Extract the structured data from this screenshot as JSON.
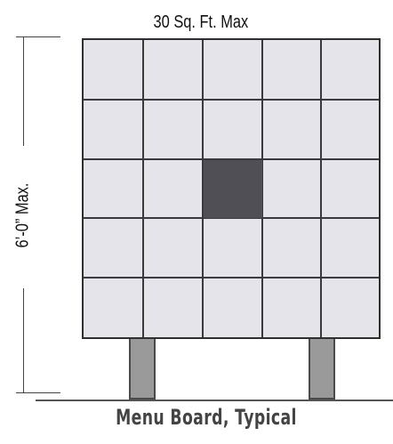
{
  "diagram": {
    "title": "30 Sq. Ft. Max",
    "height_label": "6’-0” Max.",
    "caption": "Menu Board, Typical",
    "grid": {
      "rows": 5,
      "cols": 5,
      "highlighted_cell": {
        "row": 3,
        "col": 3
      }
    },
    "colors": {
      "panel_fill": "#e4e4ea",
      "grid_lines": "#3a3a3a",
      "highlight": "#4f4f55",
      "posts": "#9a9a9a",
      "caption": "#444444"
    }
  }
}
